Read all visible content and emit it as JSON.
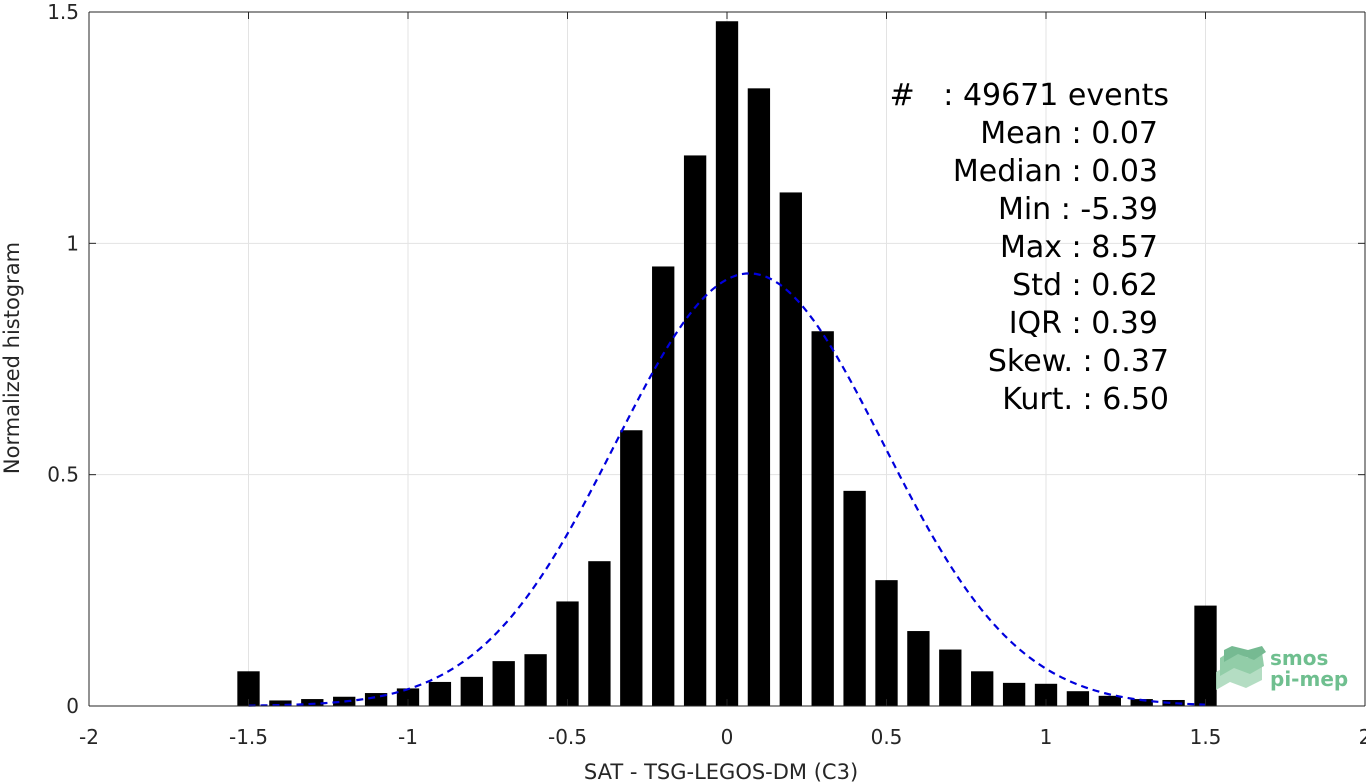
{
  "chart_data": {
    "type": "bar",
    "xlabel": "SAT - TSG-LEGOS-DM (C3)",
    "ylabel": "Normalized histogram",
    "xlim": [
      -2,
      2
    ],
    "ylim": [
      0,
      1.5
    ],
    "xticks": [
      "-2",
      "-1.5",
      "-1",
      "-0.5",
      "0",
      "0.5",
      "1",
      "1.5",
      "2"
    ],
    "yticks": [
      "0",
      "0.5",
      "1",
      "1.5"
    ],
    "grid": true,
    "bar_width": 0.07,
    "bar_color": "#000000",
    "bars": {
      "x": [
        -1.5,
        -1.4,
        -1.3,
        -1.2,
        -1.1,
        -1.0,
        -0.9,
        -0.8,
        -0.7,
        -0.6,
        -0.5,
        -0.4,
        -0.3,
        -0.2,
        -0.1,
        0.0,
        0.1,
        0.2,
        0.3,
        0.4,
        0.5,
        0.6,
        0.7,
        0.8,
        0.9,
        1.0,
        1.1,
        1.2,
        1.3,
        1.4,
        1.5
      ],
      "values": [
        0.075,
        0.012,
        0.015,
        0.02,
        0.028,
        0.038,
        0.052,
        0.063,
        0.097,
        0.112,
        0.226,
        0.313,
        0.596,
        0.95,
        1.19,
        1.48,
        1.335,
        1.11,
        0.81,
        0.465,
        0.272,
        0.162,
        0.122,
        0.075,
        0.05,
        0.048,
        0.032,
        0.022,
        0.015,
        0.013,
        0.217
      ]
    },
    "fit_curve": {
      "kind": "normal",
      "mean": 0.07,
      "std": 0.42,
      "peak": 0.935,
      "color": "#0000dd",
      "style": "dashed",
      "x_range": [
        -1.5,
        1.5
      ]
    }
  },
  "stats": {
    "events": "#   : 49671 events",
    "mean": "Mean : 0.07",
    "median": "Median : 0.03",
    "min": "Min : -5.39",
    "max": "Max : 8.57",
    "std": "Std : 0.62",
    "iqr": "IQR : 0.39",
    "skew": "Skew. : 0.37",
    "kurt": "Kurt. : 6.50"
  },
  "logo": {
    "line1": "smos",
    "line2": "pi-mep",
    "color": "#6fbf8f"
  }
}
